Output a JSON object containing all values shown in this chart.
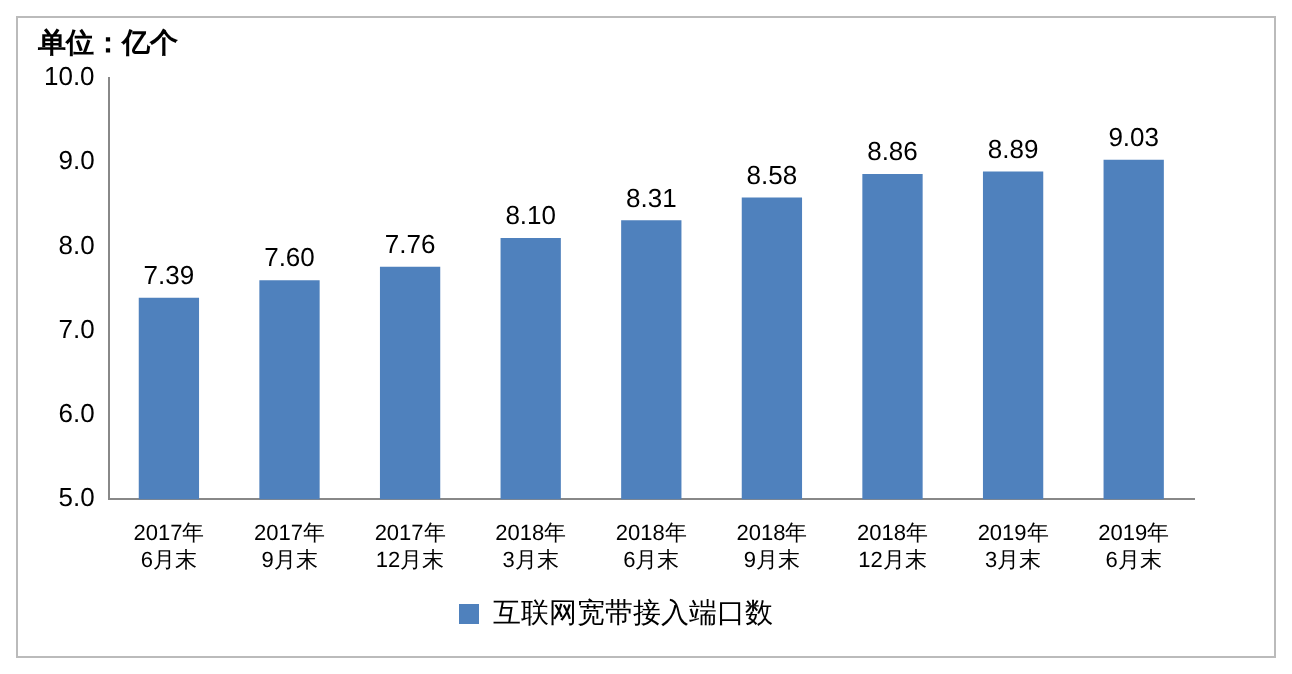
{
  "chart_data": {
    "type": "bar",
    "ylabel": "单位：亿个",
    "categories": [
      "2017年\n6月末",
      "2017年\n9月末",
      "2017年\n12月末",
      "2018年\n3月末",
      "2018年\n6月末",
      "2018年\n9月末",
      "2018年\n12月末",
      "2019年\n3月末",
      "2019年\n6月末"
    ],
    "series": [
      {
        "name": "互联网宽带接入端口数",
        "color": "#4f81bd",
        "values": [
          7.39,
          7.6,
          7.76,
          8.1,
          8.31,
          8.58,
          8.86,
          8.89,
          9.03
        ],
        "value_labels": [
          "7.39",
          "7.60",
          "7.76",
          "8.10",
          "8.31",
          "8.58",
          "8.86",
          "8.89",
          "9.03"
        ]
      }
    ],
    "ylim": [
      5,
      10
    ],
    "yticks": [
      {
        "value": 5,
        "label": "5.0"
      },
      {
        "value": 6,
        "label": "6.0"
      },
      {
        "value": 7,
        "label": "7.0"
      },
      {
        "value": 8,
        "label": "8.0"
      },
      {
        "value": 9,
        "label": "9.0"
      },
      {
        "value": 10,
        "label": "10.0"
      }
    ],
    "grid": false,
    "legend": "bottom"
  }
}
